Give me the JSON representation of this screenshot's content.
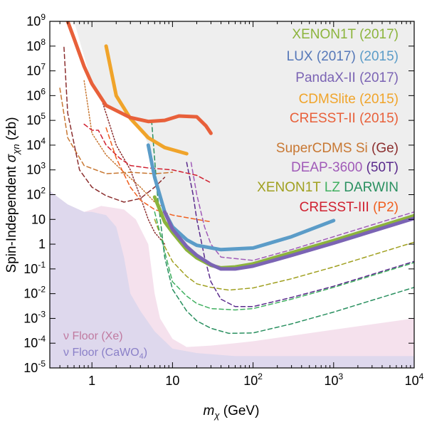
{
  "chart_data": {
    "type": "line",
    "xlabel_main": "m",
    "xlabel_sub": "χ",
    "xlabel_unit": " (GeV)",
    "ylabel_pre": "Spin-Independent ",
    "ylabel_sym": "σ",
    "ylabel_sub": "χn",
    "ylabel_unit": " (zb)",
    "xscale": "log",
    "yscale": "log",
    "xlim": [
      0.3,
      10000
    ],
    "ylim": [
      1e-05,
      1000000000
    ],
    "x_ticks": [
      {
        "v": 1,
        "base": "1",
        "exp": ""
      },
      {
        "v": 10,
        "base": "10",
        "exp": ""
      },
      {
        "v": 100,
        "base": "10",
        "exp": "2"
      },
      {
        "v": 1000,
        "base": "10",
        "exp": "3"
      },
      {
        "v": 10000,
        "base": "10",
        "exp": "4"
      }
    ],
    "y_ticks": [
      {
        "v": 1000000000,
        "base": "10",
        "exp": "9"
      },
      {
        "v": 100000000,
        "base": "10",
        "exp": "8"
      },
      {
        "v": 10000000,
        "base": "10",
        "exp": "7"
      },
      {
        "v": 1000000,
        "base": "10",
        "exp": "6"
      },
      {
        "v": 100000,
        "base": "10",
        "exp": "5"
      },
      {
        "v": 10000,
        "base": "10",
        "exp": "4"
      },
      {
        "v": 1000,
        "base": "10",
        "exp": "3"
      },
      {
        "v": 100,
        "base": "10",
        "exp": "2"
      },
      {
        "v": 10,
        "base": "10",
        "exp": ""
      },
      {
        "v": 1,
        "base": "1",
        "exp": ""
      },
      {
        "v": 0.1,
        "base": "10",
        "exp": "-1"
      },
      {
        "v": 0.01,
        "base": "10",
        "exp": "-2"
      },
      {
        "v": 0.001,
        "base": "10",
        "exp": "-3"
      },
      {
        "v": 0.0001,
        "base": "10",
        "exp": "-4"
      },
      {
        "v": 1e-05,
        "base": "10",
        "exp": "-5"
      }
    ],
    "excluded_region": {
      "color": "#eeeeee",
      "boundary": [
        [
          0.6,
          1000000000.0
        ],
        [
          1.0,
          3000000.0
        ],
        [
          1.5,
          400000.0
        ],
        [
          2.0,
          300000.0
        ],
        [
          4.0,
          50000.0
        ],
        [
          5.6,
          5000.0
        ],
        [
          7.0,
          100
        ],
        [
          10,
          4
        ],
        [
          15,
          0.7
        ],
        [
          20,
          0.3
        ],
        [
          30,
          0.12
        ],
        [
          40,
          0.1
        ],
        [
          100,
          0.16
        ],
        [
          300,
          0.5
        ],
        [
          1000,
          1.5
        ],
        [
          10000,
          15
        ]
      ]
    },
    "nu_floor": [
      {
        "label": "ν Floor (Xe)",
        "color": "#f3dcea",
        "points": [
          [
            0.3,
            140
          ],
          [
            0.5,
            40
          ],
          [
            0.8,
            20
          ],
          [
            1.0,
            25
          ],
          [
            1.3,
            35
          ],
          [
            1.8,
            30
          ],
          [
            2.5,
            25
          ],
          [
            3.5,
            10
          ],
          [
            5,
            1
          ],
          [
            6,
            0.01
          ],
          [
            7,
            0.001
          ],
          [
            10,
            0.00015
          ],
          [
            15,
            7e-05
          ],
          [
            30,
            8e-05
          ],
          [
            60,
            0.0001
          ],
          [
            100,
            0.00012
          ],
          [
            1000,
            0.00035
          ],
          [
            10000,
            0.001
          ]
        ]
      },
      {
        "label": "ν Floor (CaWO₄)",
        "color": "#d9d6ec",
        "points": [
          [
            0.3,
            140
          ],
          [
            0.5,
            40
          ],
          [
            0.8,
            20
          ],
          [
            1.0,
            20
          ],
          [
            1.5,
            15
          ],
          [
            2.0,
            5
          ],
          [
            2.5,
            0.3
          ],
          [
            3.0,
            0.01
          ],
          [
            4.0,
            0.002
          ],
          [
            6.0,
            0.0003
          ],
          [
            10,
            6e-05
          ],
          [
            20,
            4e-05
          ],
          [
            60,
            3e-05
          ],
          [
            10000,
            3e-05
          ]
        ]
      }
    ],
    "series": [
      {
        "name": "XENON1T (2017)",
        "color": "#8cb43c",
        "width": 5,
        "dash": "",
        "points": [
          [
            6,
            80
          ],
          [
            8,
            8
          ],
          [
            10,
            3
          ],
          [
            15,
            0.6
          ],
          [
            20,
            0.28
          ],
          [
            30,
            0.14
          ],
          [
            40,
            0.11
          ],
          [
            60,
            0.12
          ],
          [
            100,
            0.16
          ],
          [
            300,
            0.45
          ],
          [
            1000,
            1.4
          ],
          [
            10000,
            14
          ]
        ]
      },
      {
        "name": "LUX (2017)",
        "color": "#5b9cc8",
        "width": 5,
        "dash": "",
        "points": [
          [
            5,
            10000.0
          ],
          [
            6,
            500
          ],
          [
            8,
            20
          ],
          [
            10,
            5
          ],
          [
            15,
            1.5
          ],
          [
            20,
            0.9
          ],
          [
            40,
            0.6
          ],
          [
            100,
            0.7
          ],
          [
            300,
            2
          ],
          [
            1000,
            9
          ]
        ]
      },
      {
        "name": "PandaX-II (2017)",
        "color": "#7b64b4",
        "width": 5,
        "dash": "",
        "points": [
          [
            8,
            20
          ],
          [
            10,
            4
          ],
          [
            15,
            0.8
          ],
          [
            20,
            0.35
          ],
          [
            30,
            0.15
          ],
          [
            40,
            0.1
          ],
          [
            60,
            0.1
          ],
          [
            100,
            0.13
          ],
          [
            300,
            0.35
          ],
          [
            1000,
            1.1
          ],
          [
            10000,
            11
          ]
        ]
      },
      {
        "name": "CDMSlite (2015)",
        "color": "#f0a42a",
        "width": 5,
        "dash": "",
        "points": [
          [
            1.5,
            100000000.0
          ],
          [
            2,
            1000000.0
          ],
          [
            3,
            120000.0
          ],
          [
            5,
            20000.0
          ],
          [
            8,
            8000.0
          ],
          [
            15,
            4500.0
          ]
        ]
      },
      {
        "name": "CRESST-II (2015)",
        "color": "#e8603a",
        "width": 5,
        "dash": "",
        "points": [
          [
            0.5,
            1000000000.0
          ],
          [
            0.6,
            200000000.0
          ],
          [
            0.8,
            15000000.0
          ],
          [
            1.0,
            3000000.0
          ],
          [
            1.5,
            400000.0
          ],
          [
            2.0,
            250000.0
          ],
          [
            3,
            130000.0
          ],
          [
            5,
            90000.0
          ],
          [
            8,
            100000.0
          ],
          [
            12,
            150000.0
          ],
          [
            20,
            140000.0
          ],
          [
            26,
            60000.0
          ],
          [
            30,
            30000.0
          ]
        ]
      },
      {
        "name": "SuperCDMS Si",
        "color": "#c87833",
        "width": 1.5,
        "dash": "1.5,2.5",
        "points": [
          [
            0.8,
            4000000.0
          ],
          [
            1,
            30000.0
          ],
          [
            1.5,
            4000.0
          ],
          [
            2.5,
            800
          ],
          [
            4,
            200
          ],
          [
            6,
            50
          ],
          [
            8,
            30
          ]
        ]
      },
      {
        "name": "SuperCDMS Ge",
        "color": "#8b2e2e",
        "width": 1.5,
        "dash": "1.5,2.5",
        "points": [
          [
            1.3,
            800000.0
          ],
          [
            2,
            10000.0
          ],
          [
            3,
            1000.0
          ],
          [
            4,
            80
          ],
          [
            5,
            10
          ],
          [
            6,
            3
          ],
          [
            8,
            1
          ]
        ]
      },
      {
        "name": "SuperCDMS Si proj",
        "color": "#c87833",
        "width": 1.5,
        "dash": "6,4",
        "points": [
          [
            0.4,
            2000000.0
          ],
          [
            0.5,
            20000.0
          ],
          [
            0.8,
            1500.0
          ],
          [
            1.5,
            700
          ],
          [
            3,
            800
          ],
          [
            6,
            700
          ],
          [
            10,
            800
          ]
        ]
      },
      {
        "name": "SuperCDMS Ge proj",
        "color": "#8b2e2e",
        "width": 1.5,
        "dash": "6,4",
        "points": [
          [
            0.45,
            90000000.0
          ],
          [
            0.5,
            200000.0
          ],
          [
            0.7,
            1000.0
          ],
          [
            1,
            200
          ],
          [
            1.5,
            90
          ],
          [
            2.5,
            50
          ],
          [
            4,
            70
          ],
          [
            6,
            200
          ],
          [
            8,
            500
          ]
        ]
      },
      {
        "name": "DEAP-3600",
        "color": "#a05ab8",
        "width": 1.5,
        "dash": "6,4",
        "points": [
          [
            17,
            2000.0
          ],
          [
            20,
            100
          ],
          [
            25,
            5
          ],
          [
            30,
            1
          ],
          [
            40,
            0.3
          ],
          [
            100,
            0.22
          ],
          [
            300,
            0.6
          ],
          [
            1000,
            2
          ],
          [
            10000,
            20
          ]
        ]
      },
      {
        "name": "50T",
        "color": "#5a2a8c",
        "width": 1.5,
        "dash": "6,4",
        "points": [
          [
            15,
            2000.0
          ],
          [
            18,
            100
          ],
          [
            20,
            10
          ],
          [
            25,
            0.3
          ],
          [
            30,
            0.03
          ],
          [
            40,
            0.006
          ],
          [
            60,
            0.003
          ],
          [
            100,
            0.003
          ],
          [
            300,
            0.007
          ],
          [
            1000,
            0.02
          ],
          [
            10000,
            0.2
          ]
        ]
      },
      {
        "name": "XENON1T proj",
        "color": "#a0a020",
        "width": 1.5,
        "dash": "6,4",
        "points": [
          [
            6,
            10
          ],
          [
            8,
            0.8
          ],
          [
            10,
            0.2
          ],
          [
            15,
            0.05
          ],
          [
            20,
            0.025
          ],
          [
            30,
            0.018
          ],
          [
            50,
            0.014
          ],
          [
            100,
            0.017
          ],
          [
            300,
            0.04
          ],
          [
            1000,
            0.12
          ],
          [
            10000,
            1.2
          ]
        ]
      },
      {
        "name": "LZ",
        "color": "#40b060",
        "width": 1.5,
        "dash": "6,4",
        "points": [
          [
            6,
            20
          ],
          [
            8,
            0.5
          ],
          [
            10,
            0.03
          ],
          [
            15,
            0.008
          ],
          [
            20,
            0.004
          ],
          [
            30,
            0.0025
          ],
          [
            60,
            0.0022
          ],
          [
            100,
            0.0025
          ],
          [
            300,
            0.006
          ],
          [
            1000,
            0.018
          ],
          [
            10000,
            0.18
          ]
        ]
      },
      {
        "name": "DARWIN",
        "color": "#2a9060",
        "width": 1.5,
        "dash": "6,4",
        "points": [
          [
            5.5,
            100000.0
          ],
          [
            6.5,
            100
          ],
          [
            8,
            0.3
          ],
          [
            10,
            0.015
          ],
          [
            15,
            0.002
          ],
          [
            20,
            0.0008
          ],
          [
            30,
            0.0004
          ],
          [
            50,
            0.00025
          ],
          [
            100,
            0.00026
          ],
          [
            300,
            0.0006
          ],
          [
            1000,
            0.0018
          ],
          [
            10000,
            0.018
          ]
        ]
      },
      {
        "name": "CRESST-III",
        "color": "#d02030",
        "width": 1.5,
        "dash": "6,4",
        "points": [
          [
            0.8,
            70000.0
          ],
          [
            1.0,
            40000.0
          ],
          [
            1.2,
            40000.0
          ],
          [
            1.5,
            10000.0
          ],
          [
            2.2,
            3000.0
          ],
          [
            3,
            1500.0
          ],
          [
            5,
            1200.0
          ],
          [
            10,
            1000.0
          ],
          [
            20,
            600
          ],
          [
            30,
            300
          ]
        ]
      },
      {
        "name": "P2",
        "color": "#f06020",
        "width": 1.5,
        "dash": "6,4",
        "points": [
          [
            1.5,
            50000.0
          ],
          [
            2,
            3000.0
          ],
          [
            3,
            200
          ],
          [
            4,
            60
          ],
          [
            6,
            25
          ],
          [
            10,
            15
          ],
          [
            20,
            10
          ],
          [
            30,
            8
          ]
        ]
      }
    ],
    "legend": [
      {
        "parts": [
          {
            "t": "XENON1T (2017)",
            "c": "#8cb43c"
          }
        ]
      },
      {
        "parts": [
          {
            "t": "LUX (2017) ",
            "c": "#5577b8"
          },
          {
            "t": "(2015)",
            "c": "#5b9cc8"
          }
        ]
      },
      {
        "parts": [
          {
            "t": "PandaX-II (2017)",
            "c": "#7b64b4"
          }
        ]
      },
      {
        "parts": [
          {
            "t": "CDMSlite (2015)",
            "c": "#f0a42a"
          }
        ]
      },
      {
        "parts": [
          {
            "t": "CRESST-II (2015)",
            "c": "#e8603a"
          }
        ]
      },
      {
        "parts": [
          {
            "t": "SuperCDMS ",
            "c": "#c87833"
          },
          {
            "t": "Si ",
            "c": "#c87833"
          },
          {
            "t": "(Ge)",
            "c": "#8b2e2e"
          }
        ]
      },
      {
        "parts": [
          {
            "t": "DEAP-3600 ",
            "c": "#a05ab8"
          },
          {
            "t": "(50T)",
            "c": "#5a2a8c"
          }
        ]
      },
      {
        "parts": [
          {
            "t": "XENON1T ",
            "c": "#a0a020"
          },
          {
            "t": "LZ ",
            "c": "#40b060"
          },
          {
            "t": "DARWIN",
            "c": "#2a9060"
          }
        ]
      },
      {
        "parts": [
          {
            "t": "CRESST-III ",
            "c": "#d02030"
          },
          {
            "t": "(P2)",
            "c": "#f06020"
          }
        ]
      }
    ],
    "floor_labels": [
      {
        "pre": "ν Floor (Xe)",
        "sub": "",
        "post": "",
        "c": "#c07aa0"
      },
      {
        "pre": "ν Floor (CaWO",
        "sub": "4",
        "post": ")",
        "c": "#8a80c8"
      }
    ]
  }
}
